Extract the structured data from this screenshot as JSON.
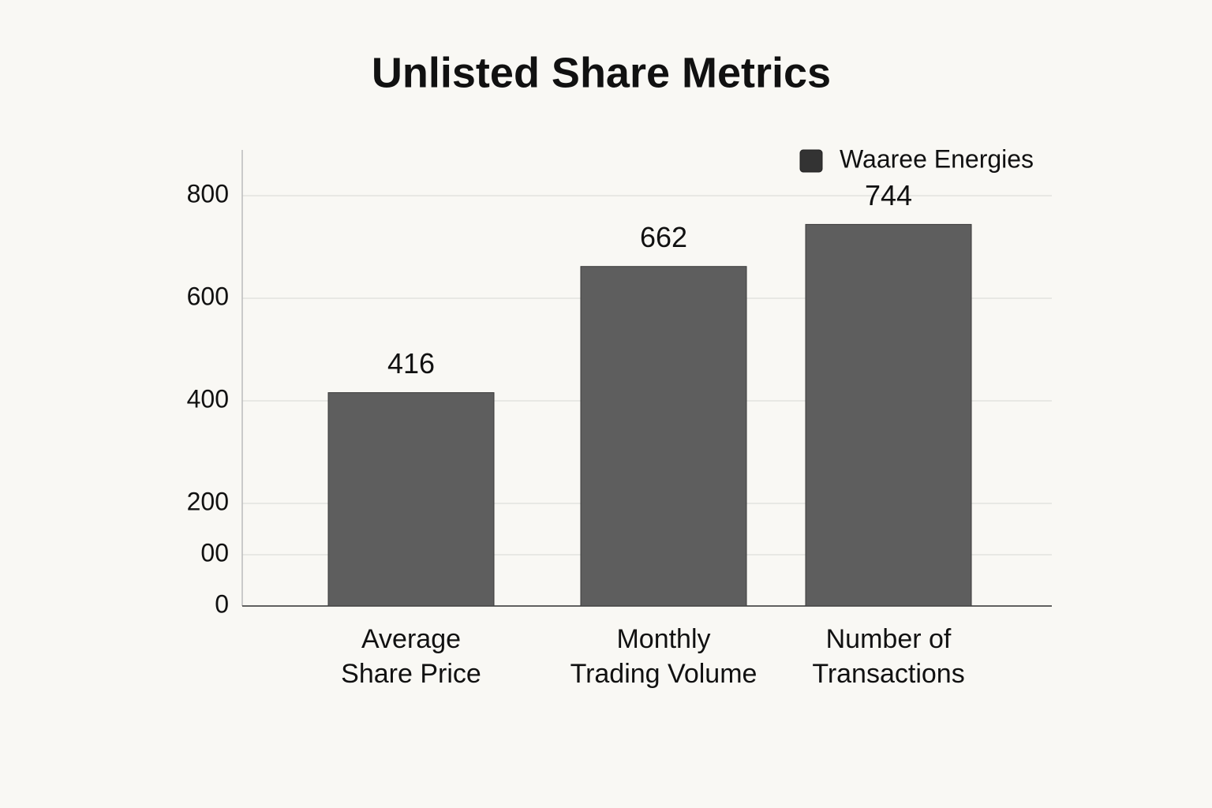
{
  "chart_data": {
    "type": "bar",
    "title": "Unlisted Share Metrics",
    "categories": [
      "Average\nShare Price",
      "Monthly\nTrading Volume",
      "Number of\nTransactions"
    ],
    "series": [
      {
        "name": "Waaree Energies",
        "color": "#5e5e5e",
        "values": [
          416,
          662,
          744
        ]
      }
    ],
    "ylim": [
      0,
      900
    ],
    "yticks": [
      0,
      {
        "value": 100,
        "label": "00"
      },
      200,
      400,
      600,
      800
    ],
    "grid": true,
    "legend": "top-right"
  }
}
